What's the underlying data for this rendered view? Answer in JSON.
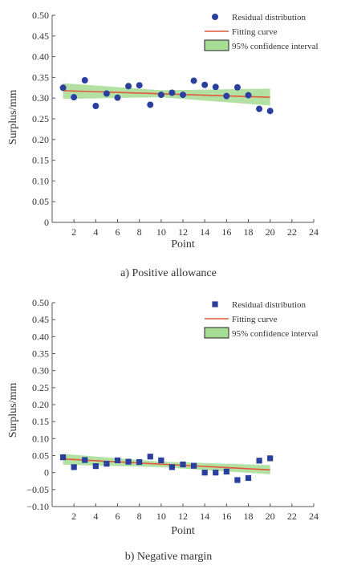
{
  "chart_data": [
    {
      "type": "scatter",
      "caption": "a) Positive allowance",
      "xlabel": "Point",
      "ylabel": "Surplus/mm",
      "xlim": [
        0,
        24
      ],
      "ylim": [
        0,
        0.5
      ],
      "xticks": [
        2,
        4,
        6,
        8,
        10,
        12,
        14,
        16,
        18,
        20,
        22,
        24
      ],
      "yticks": [
        "0",
        "0.05",
        "0.10",
        "0.15",
        "0.20",
        "0.25",
        "0.30",
        "0.35",
        "0.40",
        "0.45",
        "0.50"
      ],
      "grid": false,
      "legend_position": "top-right",
      "legend": [
        "Residual distribution",
        "Fitting curve",
        "95% confidence interval"
      ],
      "marker": "circle",
      "colors": {
        "points": "#2a3f9e",
        "fit": "#e05a3a",
        "band": "#a6dc94",
        "band_edge": "#222222"
      },
      "series": [
        {
          "name": "Residual distribution",
          "x": [
            1,
            2,
            3,
            4,
            5,
            6,
            7,
            8,
            9,
            10,
            11,
            12,
            13,
            14,
            15,
            16,
            17,
            18,
            19,
            20
          ],
          "y": [
            0.325,
            0.302,
            0.343,
            0.281,
            0.311,
            0.301,
            0.329,
            0.331,
            0.284,
            0.308,
            0.313,
            0.308,
            0.342,
            0.332,
            0.327,
            0.305,
            0.326,
            0.307,
            0.274,
            0.269
          ]
        }
      ],
      "fit": {
        "x": [
          1,
          20
        ],
        "y": [
          0.318,
          0.302
        ]
      },
      "confidence_band": {
        "x": [
          1,
          10,
          20
        ],
        "upper": [
          0.336,
          0.319,
          0.323
        ],
        "lower": [
          0.298,
          0.302,
          0.282
        ]
      }
    },
    {
      "type": "scatter",
      "caption": "b) Negative margin",
      "xlabel": "Point",
      "ylabel": "Surplus/mm",
      "xlim": [
        0,
        24
      ],
      "ylim": [
        -0.1,
        0.5
      ],
      "xticks": [
        2,
        4,
        6,
        8,
        10,
        12,
        14,
        16,
        18,
        20,
        22,
        24
      ],
      "yticks": [
        "0.50",
        "0.45",
        "0.40",
        "0.35",
        "0.30",
        "0.25",
        "0.20",
        "0.15",
        "0.10",
        "0.05",
        "0",
        "−0.05",
        "−0.10"
      ],
      "ytick_values": [
        0.5,
        0.45,
        0.4,
        0.35,
        0.3,
        0.25,
        0.2,
        0.15,
        0.1,
        0.05,
        0,
        -0.05,
        -0.1
      ],
      "grid": false,
      "legend_position": "top-right",
      "legend": [
        "Residual distribution",
        "Fitting curve",
        "95% confidence interval"
      ],
      "marker": "square",
      "colors": {
        "points": "#2a3f9e",
        "fit": "#e05a3a",
        "band": "#a6dc94",
        "band_edge": "#222222"
      },
      "series": [
        {
          "name": "Residual distribution",
          "x": [
            1,
            2,
            3,
            4,
            5,
            6,
            7,
            8,
            9,
            10,
            11,
            12,
            13,
            14,
            15,
            16,
            17,
            18,
            19,
            20
          ],
          "y": [
            0.045,
            0.016,
            0.037,
            0.019,
            0.026,
            0.036,
            0.032,
            0.031,
            0.047,
            0.036,
            0.016,
            0.024,
            0.02,
            0.0,
            0.0,
            0.003,
            -0.022,
            -0.016,
            0.035,
            0.042
          ]
        }
      ],
      "fit": {
        "x": [
          1,
          20
        ],
        "y": [
          0.04,
          0.008
        ]
      },
      "confidence_band": {
        "x": [
          1,
          10,
          20
        ],
        "upper": [
          0.055,
          0.032,
          0.022
        ],
        "lower": [
          0.023,
          0.016,
          -0.005
        ]
      }
    }
  ]
}
